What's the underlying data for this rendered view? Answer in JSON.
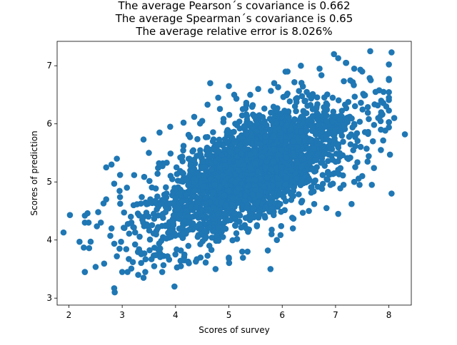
{
  "chart_data": {
    "type": "scatter",
    "title_lines": [
      "The average Pearson´s covariance is 0.662",
      "The average Spearman´s covariance is 0.65",
      "The average relative error is 8.026%"
    ],
    "xlabel": "Scores of survey",
    "ylabel": "Scores of prediction",
    "xlim": [
      1.78,
      8.42
    ],
    "ylim": [
      2.88,
      7.42
    ],
    "x_ticks": [
      2,
      3,
      4,
      5,
      6,
      7,
      8
    ],
    "y_ticks": [
      3,
      4,
      5,
      6,
      7
    ],
    "grid": false,
    "marker_color": "#1f77b4",
    "outlier_points": [
      [
        1.9,
        4.13
      ],
      [
        2.02,
        4.43
      ],
      [
        2.2,
        3.97
      ],
      [
        2.3,
        4.42
      ],
      [
        2.35,
        4.46
      ],
      [
        2.3,
        4.3
      ],
      [
        2.37,
        4.3
      ],
      [
        2.28,
        3.87
      ],
      [
        2.38,
        3.86
      ],
      [
        2.55,
        4.48
      ],
      [
        2.6,
        4.3
      ],
      [
        2.65,
        4.63
      ],
      [
        2.7,
        4.7
      ],
      [
        2.7,
        5.25
      ],
      [
        2.8,
        5.3
      ],
      [
        2.8,
        4.2
      ],
      [
        2.85,
        4.97
      ],
      [
        2.9,
        5.4
      ],
      [
        2.96,
        5.12
      ],
      [
        2.9,
        3.72
      ],
      [
        2.95,
        3.85
      ],
      [
        2.85,
        3.17
      ],
      [
        2.86,
        3.1
      ],
      [
        3.0,
        3.45
      ],
      [
        3.1,
        3.45
      ],
      [
        3.2,
        3.62
      ],
      [
        3.3,
        3.4
      ],
      [
        3.4,
        3.35
      ],
      [
        3.35,
        3.78
      ],
      [
        3.4,
        5.73
      ],
      [
        3.5,
        5.5
      ],
      [
        3.55,
        3.67
      ],
      [
        3.6,
        3.55
      ],
      [
        3.7,
        5.85
      ],
      [
        3.75,
        3.45
      ],
      [
        3.85,
        3.72
      ],
      [
        3.9,
        5.95
      ],
      [
        3.98,
        3.2
      ],
      [
        4.1,
        3.55
      ],
      [
        4.15,
        6.02
      ],
      [
        4.25,
        3.6
      ],
      [
        4.35,
        6.12
      ],
      [
        4.4,
        3.67
      ],
      [
        4.5,
        6.05
      ],
      [
        4.6,
        3.73
      ],
      [
        4.65,
        6.7
      ],
      [
        4.6,
        6.33
      ],
      [
        4.75,
        3.5
      ],
      [
        4.8,
        6.45
      ],
      [
        5.0,
        3.68
      ],
      [
        5.0,
        6.65
      ],
      [
        5.1,
        6.5
      ],
      [
        5.25,
        3.8
      ],
      [
        5.35,
        3.8
      ],
      [
        5.4,
        6.5
      ],
      [
        5.55,
        6.6
      ],
      [
        5.73,
        3.82
      ],
      [
        5.78,
        3.5
      ],
      [
        5.8,
        4.1
      ],
      [
        5.85,
        6.7
      ],
      [
        5.9,
        4.0
      ],
      [
        6.1,
        6.9
      ],
      [
        6.2,
        4.2
      ],
      [
        6.35,
        7.0
      ],
      [
        6.5,
        4.5
      ],
      [
        6.6,
        4.62
      ],
      [
        6.7,
        6.95
      ],
      [
        6.83,
        4.55
      ],
      [
        6.95,
        4.97
      ],
      [
        6.97,
        7.2
      ],
      [
        7.05,
        7.13
      ],
      [
        7.05,
        4.45
      ],
      [
        7.15,
        4.95
      ],
      [
        7.2,
        7.05
      ],
      [
        7.3,
        4.62
      ],
      [
        7.35,
        5.0
      ],
      [
        7.35,
        6.95
      ],
      [
        7.45,
        4.95
      ],
      [
        7.5,
        5.1
      ],
      [
        7.5,
        6.9
      ],
      [
        7.6,
        5.35
      ],
      [
        7.65,
        7.25
      ],
      [
        7.68,
        4.95
      ],
      [
        7.7,
        5.7
      ],
      [
        7.72,
        5.24
      ],
      [
        7.8,
        6.1
      ],
      [
        7.85,
        5.55
      ],
      [
        7.9,
        6.55
      ],
      [
        7.95,
        6.3
      ],
      [
        8.02,
        5.47
      ],
      [
        8.05,
        4.8
      ],
      [
        8.05,
        7.23
      ],
      [
        8.1,
        6.1
      ],
      [
        8.3,
        5.82
      ],
      [
        7.85,
        5.9
      ],
      [
        8.0,
        6.45
      ],
      [
        7.75,
        6.55
      ]
    ],
    "core_cloud": {
      "point_count": 2600,
      "x_mean": 5.45,
      "x_sd": 0.92,
      "y_mean": 5.2,
      "y_sd": 0.58,
      "correlation": 0.662
    }
  }
}
